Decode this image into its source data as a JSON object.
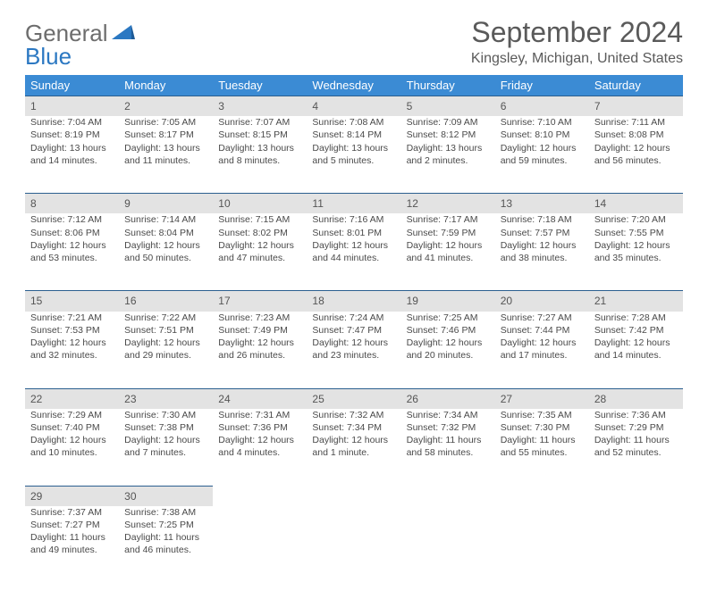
{
  "logo": {
    "word1": "General",
    "word2": "Blue"
  },
  "title": "September 2024",
  "location": "Kingsley, Michigan, United States",
  "colors": {
    "header_bg": "#3b8bd4",
    "header_text": "#ffffff",
    "daynum_bg": "#e3e3e3",
    "daynum_border": "#2b5f8f",
    "body_text": "#4a4a4a",
    "title_text": "#5a5a5a",
    "logo_gray": "#6d6d6d",
    "logo_blue": "#2b78c2"
  },
  "weekdays": [
    "Sunday",
    "Monday",
    "Tuesday",
    "Wednesday",
    "Thursday",
    "Friday",
    "Saturday"
  ],
  "weeks": [
    [
      {
        "n": "1",
        "sr": "Sunrise: 7:04 AM",
        "ss": "Sunset: 8:19 PM",
        "d1": "Daylight: 13 hours",
        "d2": "and 14 minutes."
      },
      {
        "n": "2",
        "sr": "Sunrise: 7:05 AM",
        "ss": "Sunset: 8:17 PM",
        "d1": "Daylight: 13 hours",
        "d2": "and 11 minutes."
      },
      {
        "n": "3",
        "sr": "Sunrise: 7:07 AM",
        "ss": "Sunset: 8:15 PM",
        "d1": "Daylight: 13 hours",
        "d2": "and 8 minutes."
      },
      {
        "n": "4",
        "sr": "Sunrise: 7:08 AM",
        "ss": "Sunset: 8:14 PM",
        "d1": "Daylight: 13 hours",
        "d2": "and 5 minutes."
      },
      {
        "n": "5",
        "sr": "Sunrise: 7:09 AM",
        "ss": "Sunset: 8:12 PM",
        "d1": "Daylight: 13 hours",
        "d2": "and 2 minutes."
      },
      {
        "n": "6",
        "sr": "Sunrise: 7:10 AM",
        "ss": "Sunset: 8:10 PM",
        "d1": "Daylight: 12 hours",
        "d2": "and 59 minutes."
      },
      {
        "n": "7",
        "sr": "Sunrise: 7:11 AM",
        "ss": "Sunset: 8:08 PM",
        "d1": "Daylight: 12 hours",
        "d2": "and 56 minutes."
      }
    ],
    [
      {
        "n": "8",
        "sr": "Sunrise: 7:12 AM",
        "ss": "Sunset: 8:06 PM",
        "d1": "Daylight: 12 hours",
        "d2": "and 53 minutes."
      },
      {
        "n": "9",
        "sr": "Sunrise: 7:14 AM",
        "ss": "Sunset: 8:04 PM",
        "d1": "Daylight: 12 hours",
        "d2": "and 50 minutes."
      },
      {
        "n": "10",
        "sr": "Sunrise: 7:15 AM",
        "ss": "Sunset: 8:02 PM",
        "d1": "Daylight: 12 hours",
        "d2": "and 47 minutes."
      },
      {
        "n": "11",
        "sr": "Sunrise: 7:16 AM",
        "ss": "Sunset: 8:01 PM",
        "d1": "Daylight: 12 hours",
        "d2": "and 44 minutes."
      },
      {
        "n": "12",
        "sr": "Sunrise: 7:17 AM",
        "ss": "Sunset: 7:59 PM",
        "d1": "Daylight: 12 hours",
        "d2": "and 41 minutes."
      },
      {
        "n": "13",
        "sr": "Sunrise: 7:18 AM",
        "ss": "Sunset: 7:57 PM",
        "d1": "Daylight: 12 hours",
        "d2": "and 38 minutes."
      },
      {
        "n": "14",
        "sr": "Sunrise: 7:20 AM",
        "ss": "Sunset: 7:55 PM",
        "d1": "Daylight: 12 hours",
        "d2": "and 35 minutes."
      }
    ],
    [
      {
        "n": "15",
        "sr": "Sunrise: 7:21 AM",
        "ss": "Sunset: 7:53 PM",
        "d1": "Daylight: 12 hours",
        "d2": "and 32 minutes."
      },
      {
        "n": "16",
        "sr": "Sunrise: 7:22 AM",
        "ss": "Sunset: 7:51 PM",
        "d1": "Daylight: 12 hours",
        "d2": "and 29 minutes."
      },
      {
        "n": "17",
        "sr": "Sunrise: 7:23 AM",
        "ss": "Sunset: 7:49 PM",
        "d1": "Daylight: 12 hours",
        "d2": "and 26 minutes."
      },
      {
        "n": "18",
        "sr": "Sunrise: 7:24 AM",
        "ss": "Sunset: 7:47 PM",
        "d1": "Daylight: 12 hours",
        "d2": "and 23 minutes."
      },
      {
        "n": "19",
        "sr": "Sunrise: 7:25 AM",
        "ss": "Sunset: 7:46 PM",
        "d1": "Daylight: 12 hours",
        "d2": "and 20 minutes."
      },
      {
        "n": "20",
        "sr": "Sunrise: 7:27 AM",
        "ss": "Sunset: 7:44 PM",
        "d1": "Daylight: 12 hours",
        "d2": "and 17 minutes."
      },
      {
        "n": "21",
        "sr": "Sunrise: 7:28 AM",
        "ss": "Sunset: 7:42 PM",
        "d1": "Daylight: 12 hours",
        "d2": "and 14 minutes."
      }
    ],
    [
      {
        "n": "22",
        "sr": "Sunrise: 7:29 AM",
        "ss": "Sunset: 7:40 PM",
        "d1": "Daylight: 12 hours",
        "d2": "and 10 minutes."
      },
      {
        "n": "23",
        "sr": "Sunrise: 7:30 AM",
        "ss": "Sunset: 7:38 PM",
        "d1": "Daylight: 12 hours",
        "d2": "and 7 minutes."
      },
      {
        "n": "24",
        "sr": "Sunrise: 7:31 AM",
        "ss": "Sunset: 7:36 PM",
        "d1": "Daylight: 12 hours",
        "d2": "and 4 minutes."
      },
      {
        "n": "25",
        "sr": "Sunrise: 7:32 AM",
        "ss": "Sunset: 7:34 PM",
        "d1": "Daylight: 12 hours",
        "d2": "and 1 minute."
      },
      {
        "n": "26",
        "sr": "Sunrise: 7:34 AM",
        "ss": "Sunset: 7:32 PM",
        "d1": "Daylight: 11 hours",
        "d2": "and 58 minutes."
      },
      {
        "n": "27",
        "sr": "Sunrise: 7:35 AM",
        "ss": "Sunset: 7:30 PM",
        "d1": "Daylight: 11 hours",
        "d2": "and 55 minutes."
      },
      {
        "n": "28",
        "sr": "Sunrise: 7:36 AM",
        "ss": "Sunset: 7:29 PM",
        "d1": "Daylight: 11 hours",
        "d2": "and 52 minutes."
      }
    ],
    [
      {
        "n": "29",
        "sr": "Sunrise: 7:37 AM",
        "ss": "Sunset: 7:27 PM",
        "d1": "Daylight: 11 hours",
        "d2": "and 49 minutes."
      },
      {
        "n": "30",
        "sr": "Sunrise: 7:38 AM",
        "ss": "Sunset: 7:25 PM",
        "d1": "Daylight: 11 hours",
        "d2": "and 46 minutes."
      },
      null,
      null,
      null,
      null,
      null
    ]
  ]
}
